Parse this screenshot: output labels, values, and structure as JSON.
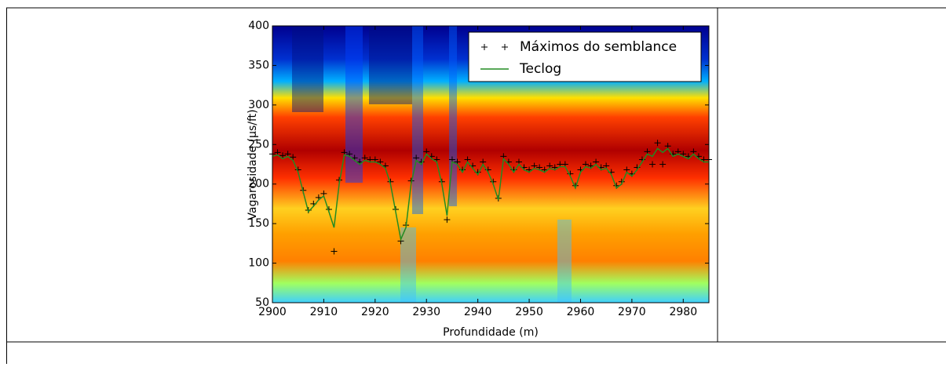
{
  "chart_data": {
    "type": "line",
    "xlabel": "Profundidade (m)",
    "ylabel": "Vagarosidade (μs/ft)",
    "x": [
      2900,
      2901,
      2902,
      2903,
      2904,
      2905,
      2906,
      2907,
      2908,
      2909,
      2910,
      2911,
      2912,
      2913,
      2914,
      2915,
      2916,
      2917,
      2918,
      2919,
      2920,
      2921,
      2922,
      2923,
      2924,
      2925,
      2926,
      2927,
      2928,
      2929,
      2930,
      2931,
      2932,
      2933,
      2934,
      2935,
      2936,
      2937,
      2938,
      2939,
      2940,
      2941,
      2942,
      2943,
      2944,
      2945,
      2946,
      2947,
      2948,
      2949,
      2950,
      2951,
      2952,
      2953,
      2954,
      2955,
      2956,
      2957,
      2958,
      2959,
      2960,
      2961,
      2962,
      2963,
      2964,
      2965,
      2966,
      2967,
      2968,
      2969,
      2970,
      2971,
      2972,
      2973,
      2974,
      2975,
      2976,
      2977,
      2978,
      2979,
      2980,
      2981,
      2982,
      2983,
      2984,
      2985
    ],
    "series": [
      {
        "name": "Máximos do semblance",
        "color": "#000000",
        "marker": "+",
        "line": false,
        "values": [
          238,
          240,
          236,
          238,
          234,
          218,
          192,
          167,
          175,
          183,
          188,
          168,
          115,
          205,
          240,
          238,
          233,
          228,
          233,
          231,
          231,
          228,
          223,
          203,
          168,
          128,
          148,
          204,
          233,
          228,
          241,
          235,
          231,
          203,
          155,
          231,
          228,
          218,
          231,
          223,
          215,
          228,
          218,
          203,
          182,
          235,
          228,
          218,
          228,
          221,
          218,
          223,
          221,
          218,
          223,
          221,
          225,
          225,
          213,
          198,
          218,
          225,
          223,
          228,
          221,
          223,
          215,
          198,
          203,
          218,
          213,
          221,
          231,
          241,
          225,
          252,
          225,
          248,
          238,
          241,
          238,
          235,
          241,
          235,
          231,
          231
        ]
      },
      {
        "name": "Teclog",
        "color": "#228b22",
        "marker": null,
        "line": true,
        "values": [
          235,
          237,
          232,
          235,
          230,
          215,
          190,
          165,
          172,
          180,
          185,
          165,
          145,
          200,
          237,
          235,
          230,
          225,
          230,
          228,
          228,
          225,
          220,
          200,
          165,
          130,
          145,
          200,
          230,
          225,
          238,
          232,
          228,
          200,
          160,
          228,
          225,
          215,
          228,
          220,
          212,
          225,
          215,
          200,
          180,
          232,
          225,
          215,
          225,
          218,
          215,
          220,
          218,
          215,
          220,
          218,
          222,
          222,
          210,
          195,
          215,
          222,
          220,
          225,
          218,
          220,
          212,
          195,
          200,
          215,
          210,
          218,
          228,
          238,
          235,
          245,
          240,
          245,
          235,
          238,
          235,
          232,
          238,
          232,
          228,
          228
        ]
      }
    ],
    "xlim": [
      2900,
      2985
    ],
    "xticks": [
      2900,
      2910,
      2920,
      2930,
      2940,
      2950,
      2960,
      2970,
      2980
    ],
    "ylim": [
      50,
      400
    ],
    "yticks": [
      50,
      100,
      150,
      200,
      250,
      300,
      350,
      400
    ],
    "legend": "upper right"
  }
}
